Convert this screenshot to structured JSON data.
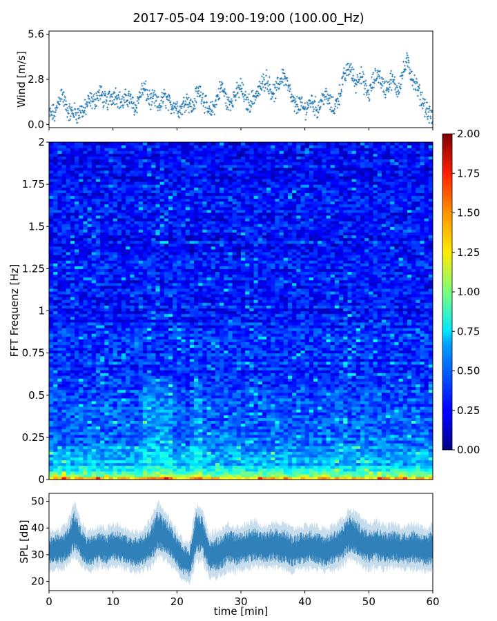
{
  "figure": {
    "title": "2017-05-04 19:00-19:00 (100.00_Hz)",
    "xlabel": "time [min]"
  },
  "chart_data": [
    {
      "type": "scatter",
      "ylabel": "Wind [m/s]",
      "xlim": [
        0,
        60
      ],
      "ylim": [
        -0.2,
        5.8
      ],
      "yticks": [
        "0.0",
        "2.8",
        "5.6"
      ],
      "marker": "+",
      "series": [
        {
          "color": "#1f77b4",
          "points": [
            [
              0.0,
              0.6
            ],
            [
              0.5,
              0.7
            ],
            [
              1.0,
              0.6
            ],
            [
              1.5,
              1.5
            ],
            [
              2.0,
              2.0
            ],
            [
              2.5,
              1.3
            ],
            [
              3.0,
              0.8
            ],
            [
              3.5,
              0.7
            ],
            [
              4.0,
              0.8
            ],
            [
              4.5,
              0.6
            ],
            [
              5.0,
              0.9
            ],
            [
              5.5,
              0.8
            ],
            [
              6.0,
              1.3
            ],
            [
              6.5,
              1.5
            ],
            [
              7.0,
              1.4
            ],
            [
              7.5,
              1.7
            ],
            [
              8.0,
              2.0
            ],
            [
              8.5,
              1.6
            ],
            [
              9.0,
              1.3
            ],
            [
              9.5,
              1.7
            ],
            [
              10.0,
              1.8
            ],
            [
              10.5,
              1.9
            ],
            [
              11.0,
              1.5
            ],
            [
              11.5,
              1.3
            ],
            [
              12.0,
              1.6
            ],
            [
              12.5,
              1.7
            ],
            [
              13.0,
              1.3
            ],
            [
              13.5,
              1.0
            ],
            [
              14.0,
              1.6
            ],
            [
              14.5,
              2.1
            ],
            [
              15.0,
              2.2
            ],
            [
              15.5,
              1.7
            ],
            [
              16.0,
              1.4
            ],
            [
              16.5,
              1.6
            ],
            [
              17.0,
              1.1
            ],
            [
              17.5,
              1.3
            ],
            [
              18.0,
              1.7
            ],
            [
              18.5,
              1.5
            ],
            [
              19.0,
              1.1
            ],
            [
              19.5,
              1.3
            ],
            [
              20.0,
              1.1
            ],
            [
              20.5,
              0.9
            ],
            [
              21.0,
              1.2
            ],
            [
              21.5,
              1.6
            ],
            [
              22.0,
              1.3
            ],
            [
              22.5,
              1.0
            ],
            [
              23.0,
              1.8
            ],
            [
              23.5,
              2.1
            ],
            [
              24.0,
              1.8
            ],
            [
              24.5,
              1.2
            ],
            [
              25.0,
              0.7
            ],
            [
              25.5,
              0.9
            ],
            [
              26.0,
              1.3
            ],
            [
              26.5,
              1.9
            ],
            [
              27.0,
              2.4
            ],
            [
              27.5,
              1.8
            ],
            [
              28.0,
              1.2
            ],
            [
              28.5,
              1.5
            ],
            [
              29.0,
              1.8
            ],
            [
              29.5,
              2.0
            ],
            [
              30.0,
              2.4
            ],
            [
              30.5,
              1.7
            ],
            [
              31.0,
              1.3
            ],
            [
              31.5,
              1.4
            ],
            [
              32.0,
              1.7
            ],
            [
              32.5,
              1.9
            ],
            [
              33.0,
              2.2
            ],
            [
              33.5,
              2.6
            ],
            [
              34.0,
              2.9
            ],
            [
              34.5,
              2.3
            ],
            [
              35.0,
              1.9
            ],
            [
              35.5,
              2.1
            ],
            [
              36.0,
              2.6
            ],
            [
              36.5,
              3.1
            ],
            [
              37.0,
              2.8
            ],
            [
              37.5,
              2.2
            ],
            [
              38.0,
              1.5
            ],
            [
              38.5,
              1.1
            ],
            [
              39.0,
              1.3
            ],
            [
              39.5,
              1.1
            ],
            [
              40.0,
              0.9
            ],
            [
              40.5,
              1.2
            ],
            [
              41.0,
              1.5
            ],
            [
              41.5,
              1.2
            ],
            [
              42.0,
              0.9
            ],
            [
              42.5,
              1.4
            ],
            [
              43.0,
              1.8
            ],
            [
              43.5,
              1.6
            ],
            [
              44.0,
              1.3
            ],
            [
              44.5,
              1.0
            ],
            [
              45.0,
              1.4
            ],
            [
              45.5,
              2.0
            ],
            [
              46.0,
              2.8
            ],
            [
              46.5,
              3.2
            ],
            [
              47.0,
              3.6
            ],
            [
              47.5,
              3.0
            ],
            [
              48.0,
              2.5
            ],
            [
              48.5,
              3.2
            ],
            [
              49.0,
              2.8
            ],
            [
              49.5,
              2.2
            ],
            [
              50.0,
              1.8
            ],
            [
              50.5,
              2.5
            ],
            [
              51.0,
              2.9
            ],
            [
              51.5,
              3.2
            ],
            [
              52.0,
              2.6
            ],
            [
              52.5,
              2.2
            ],
            [
              53.0,
              2.4
            ],
            [
              53.5,
              2.8
            ],
            [
              54.0,
              2.5
            ],
            [
              54.5,
              2.1
            ],
            [
              55.0,
              2.8
            ],
            [
              55.5,
              3.4
            ],
            [
              56.0,
              3.9
            ],
            [
              56.5,
              3.3
            ],
            [
              57.0,
              2.7
            ],
            [
              57.5,
              2.3
            ],
            [
              58.0,
              1.8
            ],
            [
              58.5,
              1.4
            ],
            [
              59.0,
              0.9
            ],
            [
              59.5,
              0.5
            ],
            [
              60.0,
              0.4
            ]
          ]
        }
      ]
    },
    {
      "type": "heatmap",
      "ylabel": "FFT Frequenz [Hz]",
      "xlim": [
        0,
        60
      ],
      "ylim": [
        0,
        2
      ],
      "yticks": [
        "0",
        "0.25",
        "0.5",
        "0.75",
        "1",
        "1.25",
        "1.5",
        "1.75",
        "2"
      ],
      "colormap": "jet",
      "colorbar": {
        "range": [
          0,
          2
        ],
        "ticks": [
          "0.00",
          "0.25",
          "0.50",
          "0.75",
          "1.00",
          "1.25",
          "1.50",
          "1.75",
          "2.00"
        ]
      },
      "value_profile_by_frequency": [
        [
          0.0,
          1.6
        ],
        [
          0.02,
          1.1
        ],
        [
          0.05,
          0.75
        ],
        [
          0.1,
          0.6
        ],
        [
          0.25,
          0.45
        ],
        [
          0.5,
          0.38
        ],
        [
          1.0,
          0.3
        ],
        [
          1.5,
          0.26
        ],
        [
          2.0,
          0.24
        ]
      ],
      "high_activity_times": [
        [
          15,
          19
        ],
        [
          23,
          24
        ]
      ]
    },
    {
      "type": "area",
      "ylabel": "SPL [dB]",
      "xlim": [
        0,
        60
      ],
      "ylim": [
        16.5,
        53
      ],
      "yticks": [
        "20",
        "30",
        "40",
        "50"
      ],
      "series": [
        {
          "color": "#1f77b4",
          "x": [
            0,
            1,
            2,
            3,
            4,
            5,
            6,
            7,
            8,
            9,
            10,
            11,
            12,
            13,
            14,
            15,
            16,
            17,
            18,
            19,
            20,
            21,
            22,
            23,
            24,
            25,
            26,
            27,
            28,
            29,
            30,
            31,
            32,
            33,
            34,
            35,
            36,
            37,
            38,
            39,
            40,
            41,
            42,
            43,
            44,
            45,
            46,
            47,
            48,
            49,
            50,
            51,
            52,
            53,
            54,
            55,
            56,
            57,
            58,
            59,
            60
          ],
          "mean": [
            31,
            32,
            32,
            34,
            39,
            34,
            31,
            32,
            33,
            32,
            33,
            33,
            32,
            31,
            31,
            32,
            34,
            39,
            37,
            35,
            31,
            28,
            27,
            38,
            37,
            30,
            30,
            31,
            33,
            32,
            32,
            33,
            34,
            33,
            32,
            34,
            33,
            33,
            31,
            32,
            32,
            33,
            32,
            31,
            32,
            33,
            35,
            38,
            36,
            34,
            33,
            34,
            33,
            32,
            33,
            32,
            32,
            33,
            32,
            31,
            33
          ],
          "lower": [
            24,
            25,
            25,
            27,
            30,
            27,
            24,
            25,
            26,
            25,
            26,
            26,
            25,
            24,
            24,
            25,
            26,
            30,
            29,
            27,
            24,
            21,
            20,
            28,
            28,
            22,
            22,
            23,
            25,
            24,
            25,
            25,
            26,
            26,
            25,
            26,
            25,
            25,
            24,
            25,
            25,
            26,
            25,
            24,
            25,
            25,
            27,
            29,
            28,
            26,
            25,
            26,
            25,
            25,
            26,
            25,
            25,
            25,
            25,
            24,
            25
          ],
          "upper": [
            38,
            39,
            39,
            42,
            49,
            42,
            38,
            39,
            40,
            39,
            41,
            40,
            39,
            38,
            38,
            40,
            43,
            49,
            46,
            43,
            38,
            35,
            34,
            48,
            46,
            37,
            38,
            39,
            41,
            40,
            40,
            41,
            42,
            41,
            40,
            42,
            41,
            41,
            39,
            40,
            40,
            41,
            40,
            39,
            40,
            41,
            43,
            47,
            45,
            42,
            41,
            42,
            41,
            40,
            41,
            40,
            40,
            41,
            40,
            39,
            41
          ]
        }
      ],
      "xticks": [
        "0",
        "10",
        "20",
        "30",
        "40",
        "50",
        "60"
      ]
    }
  ]
}
